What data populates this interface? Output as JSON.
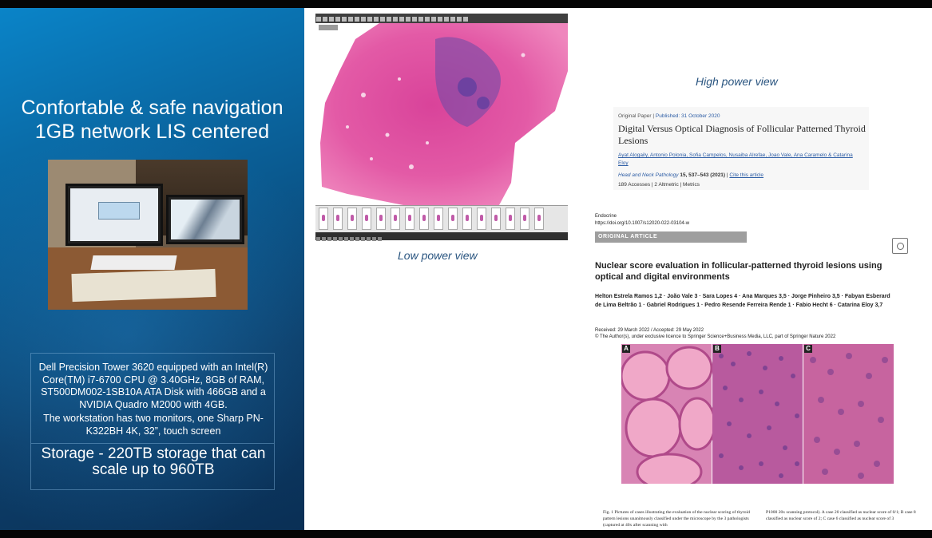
{
  "slide": {
    "title_line1": "Confortable & safe navigation",
    "title_line2": "1GB network LIS centered",
    "specs_paragraph1": "Dell Precision Tower 3620 equipped with an Intel(R) Core(TM) i7-6700 CPU @ 3.40GHz, 8GB of RAM, ST500DM002-1SB10A ATA Disk with 466GB and a NVIDIA Quadro M2000 with 4GB.",
    "specs_paragraph2": "The workstation has two monitors, one Sharp PN-K322BH 4K, 32”, touch screen",
    "storage": "Storage - 220TB storage that can scale up to 960TB",
    "low_power_caption": "Low power view",
    "high_power_caption": "High power view"
  },
  "paper1": {
    "type_label": "Original Paper",
    "published": "Published: 31 October 2020",
    "title": "Digital Versus Optical Diagnosis of Follicular Patterned Thyroid Lesions",
    "authors": "Ayat Alogaily, Antonio Polonia, Sofia Campelos, Nusaiba Alrefae, Joao Vale, Ana Caramelo & Catarina Eloy",
    "journal": "Head and Neck Pathology",
    "volume": "15, 537–543 (2021)",
    "cite": "Cite this article",
    "accesses": "189 Accesses | 2 Altmetric | Metrics"
  },
  "paper2": {
    "journal": "Endocrine",
    "doi": "https://doi.org/10.1007/s12020-022-03104-w",
    "section": "ORIGINAL ARTICLE",
    "title": "Nuclear score evaluation in follicular-patterned thyroid lesions using optical and digital environments",
    "authors": "Helton Estrela Ramos 1,2 · João Vale 3 · Sara Lopes 4 · Ana Marques 3,5 · Jorge Pinheiro 3,5 · Fabyan Esberard de Lima Beltrão 1 · Gabriel Rodrigues 1 · Pedro Resende Ferreira Rende 1 · Fabio Hecht 6 · Catarina Eloy 3,7",
    "received": "Received: 29 March 2022 / Accepted: 29 May 2022",
    "license": "© The Author(s), under exclusive licence to Springer Science+Business Media, LLC, part of Springer Nature 2022",
    "panel_a": "A",
    "panel_b": "B",
    "panel_c": "C",
    "caption_left": "Fig. 1 Pictures of cases illustrating the evaluation of the nuclear scoring of thyroid pattern lesions unanimously classified under the microscope by the 3 pathologists (captured at 40x after scanning with",
    "caption_right": "P1000 20x scanning protocol). A case 20 classified as nuclear score of 0/1; B case 8 classified as nuclear score of 2; C case 6 classified as nuclear score of 3"
  },
  "colors": {
    "slide_blue": "#0a5c93",
    "caption_blue": "#2a5580",
    "he_pink": "#e0479a",
    "he_purple": "#6a4aa8"
  }
}
